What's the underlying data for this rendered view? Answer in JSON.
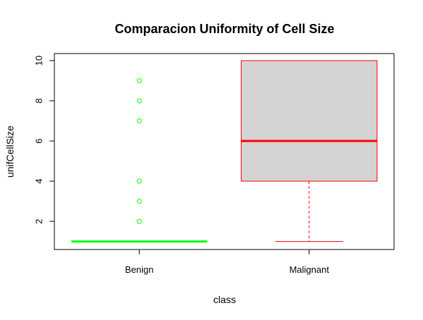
{
  "chart_data": {
    "type": "boxplot",
    "title": "Comparacion Uniformity of Cell Size",
    "xlabel": "class",
    "ylabel": "unifCellSize",
    "ylim": [
      0.6,
      10.35
    ],
    "yticks": [
      2,
      4,
      6,
      8,
      10
    ],
    "categories": [
      "Benign",
      "Malignant"
    ],
    "boxes": [
      {
        "name": "Benign",
        "min": 1,
        "q1": 1,
        "median": 1,
        "q3": 1,
        "max": 1,
        "outliers": [
          2,
          3,
          4,
          7,
          8,
          9
        ],
        "fill": "#d3d3d3",
        "color": "#00ff00"
      },
      {
        "name": "Malignant",
        "min": 1,
        "q1": 4,
        "median": 6,
        "q3": 10,
        "max": 10,
        "outliers": [],
        "fill": "#d3d3d3",
        "color": "#ff0000"
      }
    ],
    "grid": false,
    "legend": "none"
  }
}
